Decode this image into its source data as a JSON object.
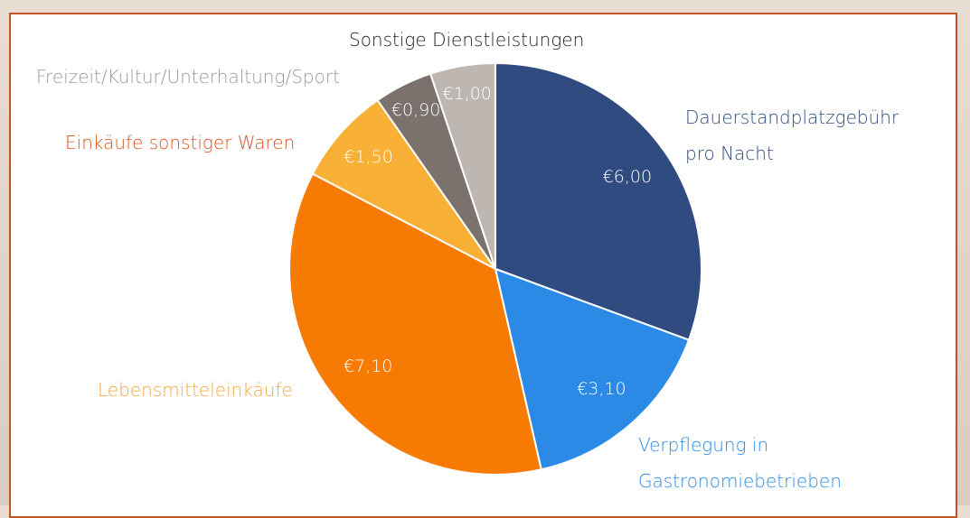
{
  "chart_data": {
    "type": "pie",
    "categories": [
      "Dauerstandplatzgebühr pro Nacht",
      "Verpflegung in Gastronomiebetrieben",
      "Lebensmitteleinkäufe",
      "Einkäufe sonstiger Waren",
      "Freizeit/Kultur/Unterhaltung/Sport",
      "Sonstige Dienstleistungen"
    ],
    "values": [
      6.0,
      3.1,
      7.1,
      1.5,
      0.9,
      1.0
    ],
    "value_labels": [
      "€6,00",
      "€3,10",
      "€7,10",
      "€1,50",
      "€0,90",
      "€1,00"
    ],
    "colors": [
      "#2f4b7f",
      "#2a8ae6",
      "#f77b02",
      "#f8b136",
      "#7b726d",
      "#bdb6b1"
    ]
  }
}
